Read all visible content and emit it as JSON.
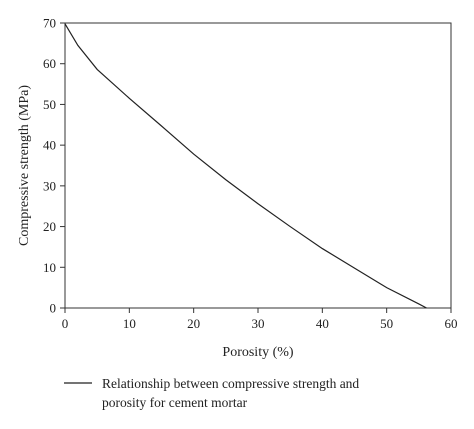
{
  "chart_data": {
    "type": "line",
    "xlabel": "Porosity (%)",
    "ylabel": "Compressive strength (MPa)",
    "xlim": [
      0,
      60
    ],
    "ylim": [
      0,
      70
    ],
    "xticks": [
      0,
      10,
      20,
      30,
      40,
      50,
      60
    ],
    "yticks": [
      0,
      10,
      20,
      30,
      40,
      50,
      60,
      70
    ],
    "grid": false,
    "legend_position": "bottom-left, outside plot",
    "series": [
      {
        "name": "Relationship between compressive strength and porosity for cement mortar",
        "legend_lines": [
          "Relationship between compressive strength and",
          "porosity for cement mortar"
        ],
        "color": "#222222",
        "x": [
          0,
          2,
          5,
          10,
          15,
          20,
          25,
          30,
          35,
          40,
          45,
          50,
          55,
          56.2
        ],
        "y": [
          69.8,
          64.5,
          58.6,
          51.5,
          44.7,
          37.8,
          31.5,
          25.6,
          20.0,
          14.6,
          9.8,
          5.0,
          1.0,
          0
        ]
      }
    ]
  }
}
